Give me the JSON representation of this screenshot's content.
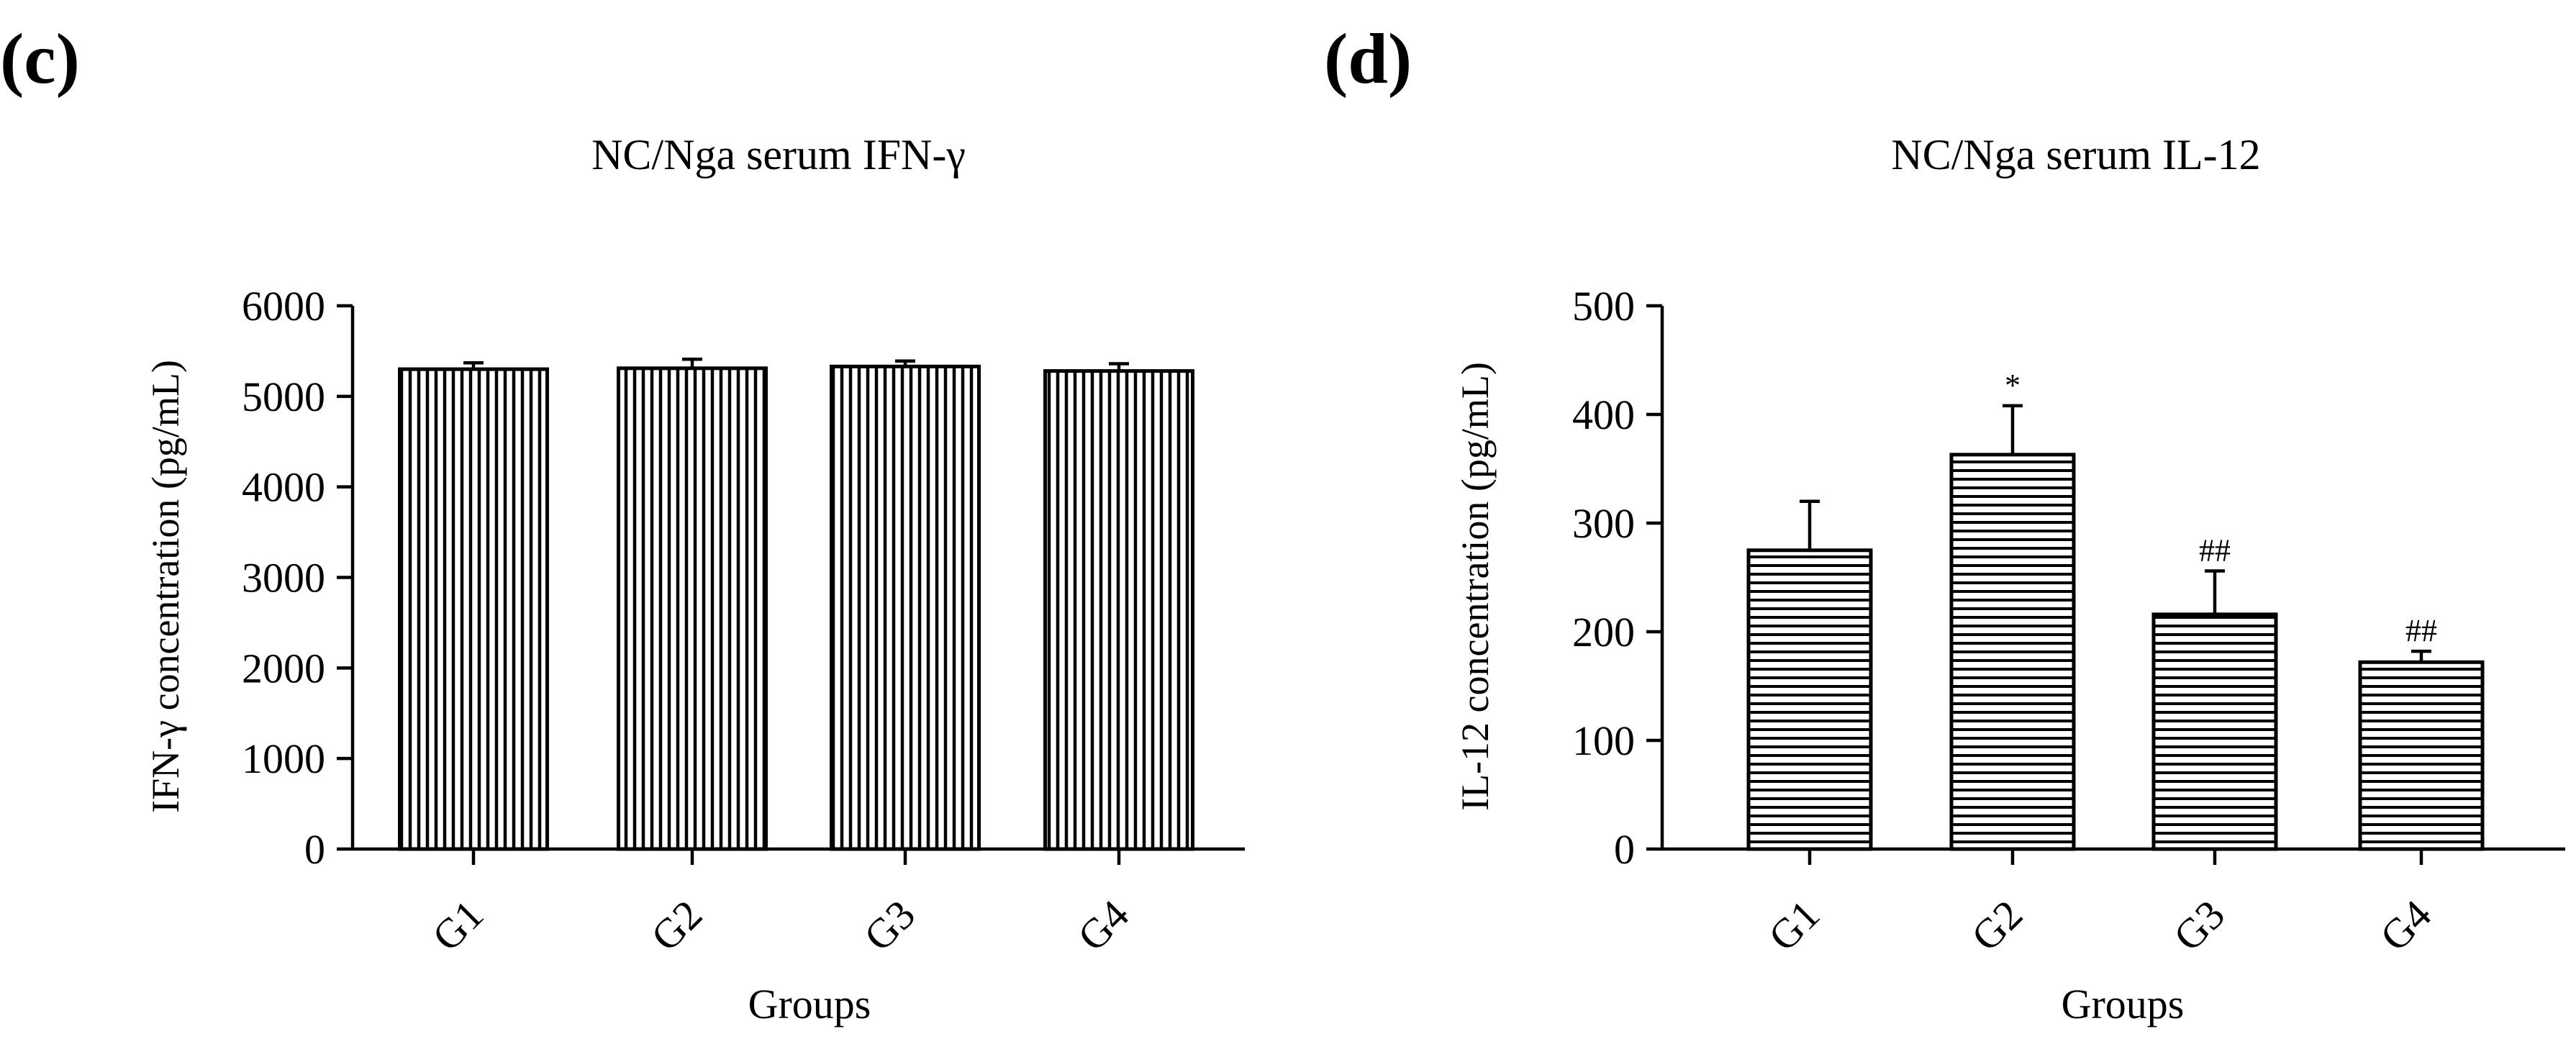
{
  "figure": {
    "background": "#ffffff",
    "ink": "#000000"
  },
  "chart_data": [
    {
      "panel_label": "(c)",
      "type": "bar",
      "title": "NC/Nga serum IFN-γ",
      "xlabel": "Groups",
      "ylabel": "IFN-γ concentration (pg/mL)",
      "ylim": [
        0,
        6000
      ],
      "yticks": [
        "0",
        "1000",
        "2000",
        "3000",
        "4000",
        "5000",
        "6000"
      ],
      "categories": [
        "G1",
        "G2",
        "G3",
        "G4"
      ],
      "values": [
        5300,
        5310,
        5330,
        5280
      ],
      "errors": [
        70,
        100,
        60,
        80
      ],
      "annotations": [
        "",
        "",
        "",
        ""
      ],
      "hatch": "vertical"
    },
    {
      "panel_label": "(d)",
      "type": "bar",
      "title": "NC/Nga serum IL-12",
      "xlabel": "Groups",
      "ylabel": "IL-12 concentration (pg/mL)",
      "ylim": [
        0,
        500
      ],
      "yticks": [
        "0",
        "100",
        "200",
        "300",
        "400",
        "500"
      ],
      "categories": [
        "G1",
        "G2",
        "G3",
        "G4"
      ],
      "values": [
        275,
        363,
        216,
        172
      ],
      "errors": [
        45,
        45,
        40,
        10
      ],
      "annotations": [
        "",
        "*",
        "##",
        "##"
      ],
      "hatch": "horizontal"
    }
  ]
}
